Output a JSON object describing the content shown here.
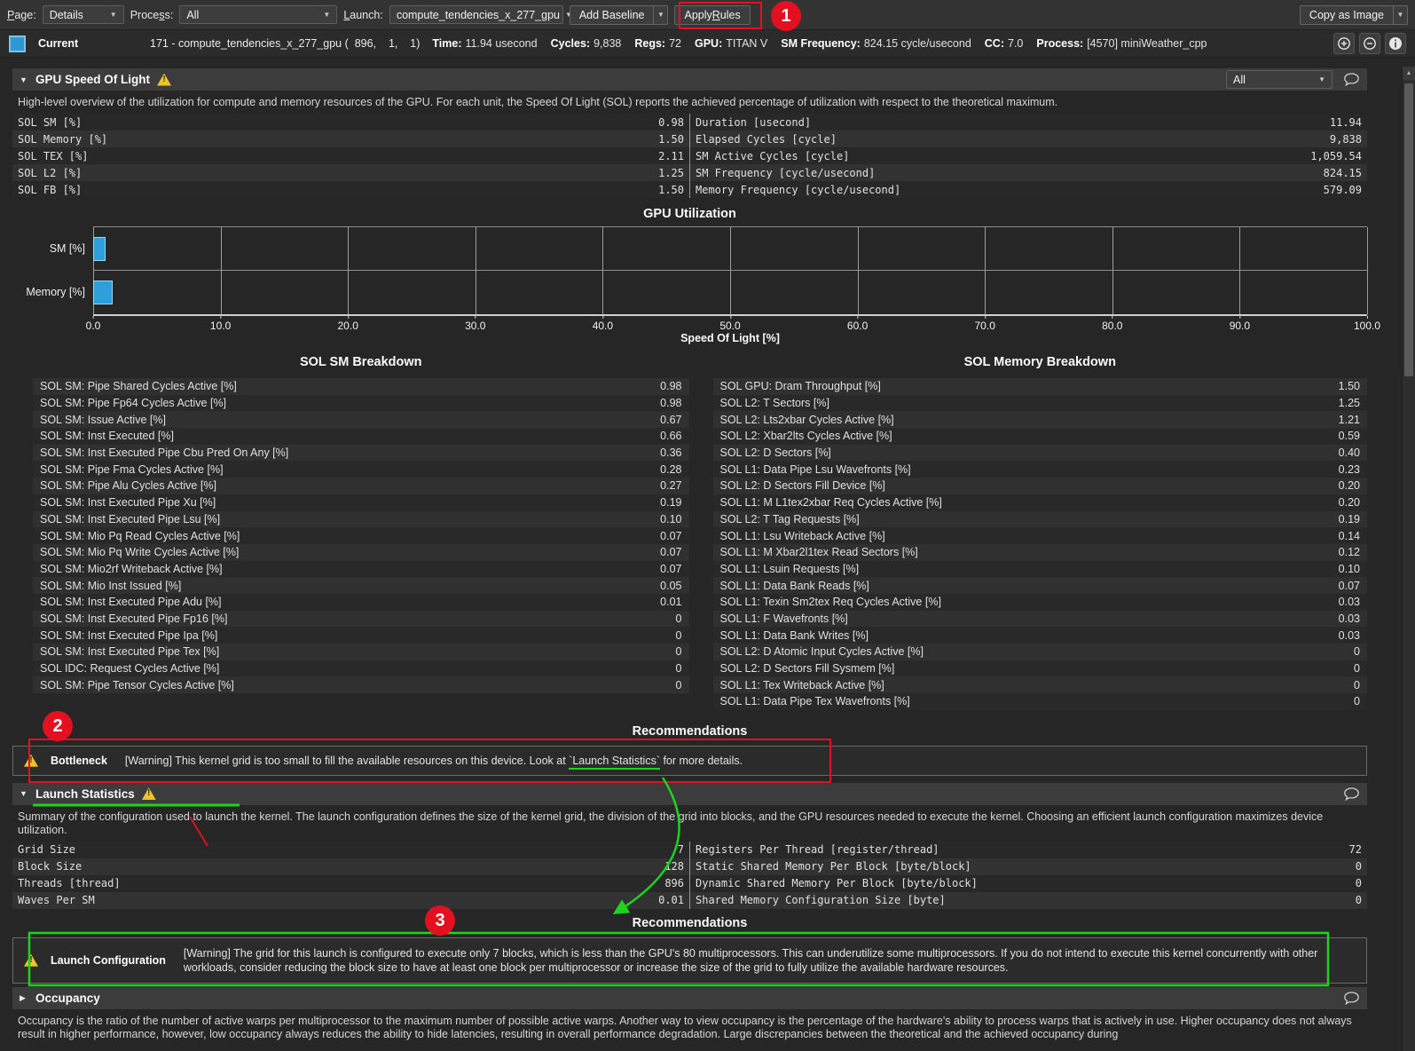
{
  "icons": {
    "expanded": "▼",
    "collapsed": "▶",
    "dropdown_arrow": "▼",
    "scroll_up": "▲"
  },
  "toolbar": {
    "page_label": {
      "text": "Page:",
      "u": 0
    },
    "page_value": "Details",
    "process_label": {
      "text": "Process:",
      "u": 5
    },
    "process_value": "All",
    "launch_label": {
      "text": "Launch:",
      "u": 0
    },
    "launch_value": "compute_tendencies_x_277_gpu",
    "add_baseline": "Add Baseline",
    "apply_rules": {
      "text": "Apply Rules",
      "u": 6
    },
    "copy_as_image": "Copy as Image"
  },
  "kernel_bar": {
    "label": "Current",
    "kernel": "171 - compute_tendencies_x_277_gpu (  896,    1,    1)",
    "stats": [
      {
        "k": "Time:",
        "v": "11.94 usecond"
      },
      {
        "k": "Cycles:",
        "v": "9,838"
      },
      {
        "k": "Regs:",
        "v": "72"
      },
      {
        "k": "GPU:",
        "v": "TITAN V"
      },
      {
        "k": "SM Frequency:",
        "v": "824.15 cycle/usecond"
      },
      {
        "k": "CC:",
        "v": "7.0"
      },
      {
        "k": "Process:",
        "v": "[4570] miniWeather_cpp"
      }
    ]
  },
  "sol_section": {
    "title": "GPU Speed Of Light",
    "filter_value": "All",
    "description": "High-level overview of the utilization for compute and memory resources of the GPU. For each unit, the Speed Of Light (SOL) reports the achieved percentage of utilization with respect to the theoretical maximum.",
    "table_left": [
      [
        "SOL SM [%]",
        "0.98"
      ],
      [
        "SOL Memory [%]",
        "1.50"
      ],
      [
        "SOL TEX [%]",
        "2.11"
      ],
      [
        "SOL L2 [%]",
        "1.25"
      ],
      [
        "SOL FB [%]",
        "1.50"
      ]
    ],
    "table_right": [
      [
        "Duration [usecond]",
        "11.94"
      ],
      [
        "Elapsed Cycles [cycle]",
        "9,838"
      ],
      [
        "SM Active Cycles [cycle]",
        "1,059.54"
      ],
      [
        "SM Frequency [cycle/usecond]",
        "824.15"
      ],
      [
        "Memory Frequency [cycle/usecond]",
        "579.09"
      ]
    ]
  },
  "chart_data": {
    "type": "bar",
    "orientation": "horizontal",
    "title": "GPU Utilization",
    "categories": [
      "SM [%]",
      "Memory [%]"
    ],
    "values": [
      0.98,
      1.5
    ],
    "xlabel": "Speed Of Light [%]",
    "xlim": [
      0,
      100
    ],
    "xticks": [
      0,
      10,
      20,
      30,
      40,
      50,
      60,
      70,
      80,
      90,
      100
    ],
    "grid": true,
    "bar_color": "#2f9fd9"
  },
  "breakdowns": {
    "sm_title": "SOL SM Breakdown",
    "mem_title": "SOL Memory Breakdown",
    "sm_rows": [
      [
        "SOL SM: Pipe Shared Cycles Active [%]",
        "0.98"
      ],
      [
        "SOL SM: Pipe Fp64 Cycles Active [%]",
        "0.98"
      ],
      [
        "SOL SM: Issue Active [%]",
        "0.67"
      ],
      [
        "SOL SM: Inst Executed [%]",
        "0.66"
      ],
      [
        "SOL SM: Inst Executed Pipe Cbu Pred On Any [%]",
        "0.36"
      ],
      [
        "SOL SM: Pipe Fma Cycles Active [%]",
        "0.28"
      ],
      [
        "SOL SM: Pipe Alu Cycles Active [%]",
        "0.27"
      ],
      [
        "SOL SM: Inst Executed Pipe Xu [%]",
        "0.19"
      ],
      [
        "SOL SM: Inst Executed Pipe Lsu [%]",
        "0.10"
      ],
      [
        "SOL SM: Mio Pq Read Cycles Active [%]",
        "0.07"
      ],
      [
        "SOL SM: Mio Pq Write Cycles Active [%]",
        "0.07"
      ],
      [
        "SOL SM: Mio2rf Writeback Active [%]",
        "0.07"
      ],
      [
        "SOL SM: Mio Inst Issued [%]",
        "0.05"
      ],
      [
        "SOL SM: Inst Executed Pipe Adu [%]",
        "0.01"
      ],
      [
        "SOL SM: Inst Executed Pipe Fp16 [%]",
        "0"
      ],
      [
        "SOL SM: Inst Executed Pipe Ipa [%]",
        "0"
      ],
      [
        "SOL SM: Inst Executed Pipe Tex [%]",
        "0"
      ],
      [
        "SOL IDC: Request Cycles Active [%]",
        "0"
      ],
      [
        "SOL SM: Pipe Tensor Cycles Active [%]",
        "0"
      ]
    ],
    "mem_rows": [
      [
        "SOL GPU: Dram Throughput [%]",
        "1.50"
      ],
      [
        "SOL L2: T Sectors [%]",
        "1.25"
      ],
      [
        "SOL L2: Lts2xbar Cycles Active [%]",
        "1.21"
      ],
      [
        "SOL L2: Xbar2lts Cycles Active [%]",
        "0.59"
      ],
      [
        "SOL L2: D Sectors [%]",
        "0.40"
      ],
      [
        "SOL L1: Data Pipe Lsu Wavefronts [%]",
        "0.23"
      ],
      [
        "SOL L2: D Sectors Fill Device [%]",
        "0.20"
      ],
      [
        "SOL L1: M L1tex2xbar Req Cycles Active [%]",
        "0.20"
      ],
      [
        "SOL L2: T Tag Requests [%]",
        "0.19"
      ],
      [
        "SOL L1: Lsu Writeback Active [%]",
        "0.14"
      ],
      [
        "SOL L1: M Xbar2l1tex Read Sectors [%]",
        "0.12"
      ],
      [
        "SOL L1: Lsuin Requests [%]",
        "0.10"
      ],
      [
        "SOL L1: Data Bank Reads [%]",
        "0.07"
      ],
      [
        "SOL L1: Texin Sm2tex Req Cycles Active [%]",
        "0.03"
      ],
      [
        "SOL L1: F Wavefronts [%]",
        "0.03"
      ],
      [
        "SOL L1: Data Bank Writes [%]",
        "0.03"
      ],
      [
        "SOL L2: D Atomic Input Cycles Active [%]",
        "0"
      ],
      [
        "SOL L2: D Sectors Fill Sysmem [%]",
        "0"
      ],
      [
        "SOL L1: Tex Writeback Active [%]",
        "0"
      ],
      [
        "SOL L1: Data Pipe Tex Wavefronts [%]",
        "0"
      ]
    ]
  },
  "recommendations1": {
    "title": "Recommendations",
    "rule_name": "Bottleneck",
    "message_pre": "[Warning] This kernel grid is too small to fill the available resources on this device. Look at ",
    "message_link": "`Launch Statistics`",
    "message_post": " for more details."
  },
  "launch_section": {
    "title": "Launch Statistics",
    "description": "Summary of the configuration used to launch the kernel. The launch configuration defines the size of the kernel grid, the division of the grid into blocks, and the GPU resources needed to execute the kernel. Choosing an efficient launch configuration maximizes device utilization.",
    "table_left": [
      [
        "Grid Size",
        "7"
      ],
      [
        "Block Size",
        "128"
      ],
      [
        "Threads [thread]",
        "896"
      ],
      [
        "Waves Per SM",
        "0.01"
      ]
    ],
    "table_right": [
      [
        "Registers Per Thread [register/thread]",
        "72"
      ],
      [
        "Static Shared Memory Per Block [byte/block]",
        "0"
      ],
      [
        "Dynamic Shared Memory Per Block [byte/block]",
        "0"
      ],
      [
        "Shared Memory Configuration Size [byte]",
        "0"
      ]
    ]
  },
  "recommendations2": {
    "title": "Recommendations",
    "rule_name": "Launch Configuration",
    "message": "[Warning] The grid for this launch is configured to execute only 7 blocks, which is less than the GPU's 80 multiprocessors. This can underutilize some multiprocessors. If you do not intend to execute this kernel concurrently with other workloads, consider reducing the block size to have at least one block per multiprocessor or increase the size of the grid to fully utilize the available hardware resources."
  },
  "occupancy_section": {
    "title": "Occupancy",
    "description": "Occupancy is the ratio of the number of active warps per multiprocessor to the maximum number of possible active warps. Another way to view occupancy is the percentage of the hardware's ability to process warps that is actively in use. Higher occupancy does not always result in higher performance, however, low occupancy always reduces the ability to hide latencies, resulting in overall performance degradation. Large discrepancies between the theoretical and the achieved occupancy during"
  },
  "annotations": {
    "badge1": "1",
    "badge2": "2",
    "badge3": "3",
    "red": "#e3101f",
    "green": "#1bd41b"
  }
}
